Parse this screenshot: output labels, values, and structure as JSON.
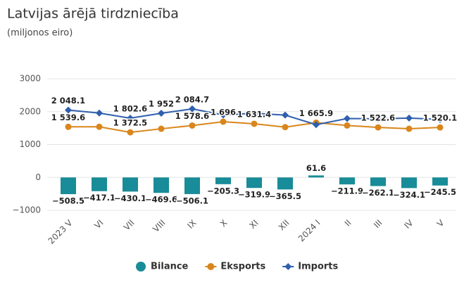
{
  "chart_data": {
    "type": "bar-line",
    "title": "Latvijas ārējā tirdzniecība",
    "subtitle": "(miljonos eiro)",
    "categories": [
      "2023 V",
      "VI",
      "VII",
      "VIII",
      "IX",
      "X",
      "XI",
      "XII",
      "2024 I",
      "II",
      "III",
      "IV",
      "V"
    ],
    "series": [
      {
        "name": "Bilance",
        "type": "bar",
        "color": "#188c98",
        "values": [
          -508.5,
          -417.1,
          -430.1,
          -469.6,
          -506.1,
          -205.3,
          -319.9,
          -365.5,
          61.6,
          -211.9,
          -262.1,
          -324.1,
          -245.5
        ],
        "value_labels": [
          "−508.5",
          "−417.1",
          "−430.1",
          "−469.6",
          "−506.1",
          "−205.3",
          "−319.9",
          "−365.5",
          "61.6",
          "−211.9",
          "−262.1",
          "−324.1",
          "−245.5"
        ]
      },
      {
        "name": "Eksports",
        "type": "line",
        "marker": "circle",
        "color": "#d9861c",
        "values": [
          1539.6,
          1540,
          1372.5,
          1480,
          1578.6,
          1696,
          1631.4,
          1530,
          1665.9,
          1580,
          1522.6,
          1480,
          1520.1
        ],
        "value_labels": [
          "1 539.6",
          null,
          "1 372.5",
          null,
          "1 578.6",
          "1 696",
          "1 631.4",
          null,
          "1 665.9",
          null,
          "1 522.6",
          null,
          "1 520.1"
        ]
      },
      {
        "name": "Imports",
        "type": "line",
        "marker": "diamond",
        "color": "#2f5fad",
        "values": [
          2048.1,
          1957.1,
          1802.6,
          1952,
          2084.7,
          1901.3,
          1951.3,
          1895.5,
          1604.3,
          1791.9,
          1784.7,
          1804.1,
          1765.6
        ],
        "value_labels": [
          "2 048.1",
          null,
          "1 802.6",
          "1 952",
          "2 084.7",
          null,
          null,
          null,
          null,
          null,
          null,
          null,
          null
        ]
      }
    ],
    "ylim": [
      -1000,
      3000
    ],
    "yticks": [
      {
        "value": -1000,
        "label": "−1000"
      },
      0,
      1000,
      2000,
      3000
    ],
    "grid": true,
    "legend": "bottom"
  }
}
